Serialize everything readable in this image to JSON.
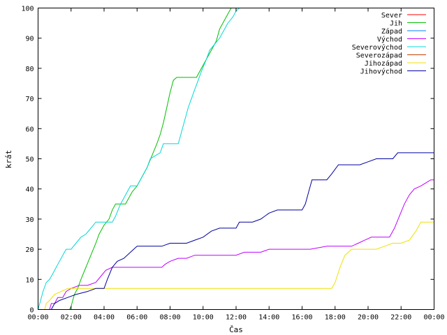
{
  "chart_data": {
    "type": "line",
    "title": "",
    "xlabel": "Čas",
    "ylabel": "krát",
    "xlim": [
      0,
      24
    ],
    "ylim": [
      0,
      100
    ],
    "grid": false,
    "legend_position": "top-right",
    "x_ticks": [
      {
        "value": 0,
        "label": "00:00"
      },
      {
        "value": 2,
        "label": "02:00"
      },
      {
        "value": 4,
        "label": "04:00"
      },
      {
        "value": 6,
        "label": "06:00"
      },
      {
        "value": 8,
        "label": "08:00"
      },
      {
        "value": 10,
        "label": "10:00"
      },
      {
        "value": 12,
        "label": "12:00"
      },
      {
        "value": 14,
        "label": "14:00"
      },
      {
        "value": 16,
        "label": "16:00"
      },
      {
        "value": 18,
        "label": "18:00"
      },
      {
        "value": 20,
        "label": "20:00"
      },
      {
        "value": 22,
        "label": "22:00"
      },
      {
        "value": 24,
        "label": "00:00"
      }
    ],
    "y_ticks": [
      {
        "value": 0,
        "label": "0"
      },
      {
        "value": 10,
        "label": "10"
      },
      {
        "value": 20,
        "label": "20"
      },
      {
        "value": 30,
        "label": "30"
      },
      {
        "value": 40,
        "label": "40"
      },
      {
        "value": 50,
        "label": "50"
      },
      {
        "value": 60,
        "label": "60"
      },
      {
        "value": 70,
        "label": "70"
      },
      {
        "value": 80,
        "label": "80"
      },
      {
        "value": 90,
        "label": "90"
      },
      {
        "value": 100,
        "label": "100"
      }
    ],
    "series": [
      {
        "name": "Sever",
        "color": "#ff0000",
        "points": []
      },
      {
        "name": "Jih",
        "color": "#00c000",
        "points": [
          [
            0.0,
            0
          ],
          [
            1.4,
            0
          ],
          [
            1.9,
            0
          ],
          [
            2.0,
            1
          ],
          [
            2.1,
            3
          ],
          [
            2.2,
            5
          ],
          [
            2.4,
            7
          ],
          [
            2.6,
            10
          ],
          [
            2.9,
            14
          ],
          [
            3.2,
            18
          ],
          [
            3.5,
            22
          ],
          [
            3.7,
            25
          ],
          [
            4.0,
            28
          ],
          [
            4.3,
            30
          ],
          [
            4.5,
            33
          ],
          [
            4.7,
            35
          ],
          [
            5.0,
            35
          ],
          [
            5.3,
            35
          ],
          [
            5.5,
            37
          ],
          [
            5.7,
            39
          ],
          [
            6.0,
            41
          ],
          [
            6.3,
            44
          ],
          [
            6.6,
            47
          ],
          [
            6.9,
            51
          ],
          [
            7.2,
            55
          ],
          [
            7.4,
            58
          ],
          [
            7.6,
            62
          ],
          [
            7.8,
            67
          ],
          [
            8.0,
            72
          ],
          [
            8.2,
            76
          ],
          [
            8.4,
            77
          ],
          [
            9.0,
            77
          ],
          [
            9.6,
            77
          ],
          [
            9.8,
            79
          ],
          [
            10.2,
            83
          ],
          [
            10.5,
            86
          ],
          [
            10.8,
            89
          ],
          [
            11.0,
            93
          ],
          [
            11.2,
            95
          ],
          [
            11.4,
            97
          ],
          [
            11.6,
            99
          ],
          [
            11.7,
            100
          ]
        ]
      },
      {
        "name": "Západ",
        "color": "#0080ff",
        "points": []
      },
      {
        "name": "Východ",
        "color": "#c000ff",
        "points": [
          [
            0.0,
            0
          ],
          [
            0.7,
            0
          ],
          [
            0.8,
            2
          ],
          [
            1.0,
            2
          ],
          [
            1.2,
            4
          ],
          [
            1.5,
            4
          ],
          [
            1.7,
            6
          ],
          [
            2.0,
            7
          ],
          [
            2.5,
            8
          ],
          [
            3.0,
            8
          ],
          [
            3.5,
            9
          ],
          [
            3.8,
            11
          ],
          [
            4.1,
            13
          ],
          [
            4.5,
            14
          ],
          [
            5.0,
            14
          ],
          [
            6.0,
            14
          ],
          [
            7.5,
            14
          ],
          [
            7.7,
            15
          ],
          [
            8.0,
            16
          ],
          [
            8.5,
            17
          ],
          [
            9.0,
            17
          ],
          [
            9.5,
            18
          ],
          [
            11.0,
            18
          ],
          [
            12.0,
            18
          ],
          [
            12.5,
            19
          ],
          [
            13.5,
            19
          ],
          [
            14.0,
            20
          ],
          [
            15.5,
            20
          ],
          [
            16.5,
            20
          ],
          [
            17.5,
            21
          ],
          [
            19.0,
            21
          ],
          [
            19.4,
            22
          ],
          [
            19.8,
            23
          ],
          [
            20.2,
            24
          ],
          [
            21.3,
            24
          ],
          [
            21.6,
            27
          ],
          [
            21.9,
            31
          ],
          [
            22.2,
            35
          ],
          [
            22.5,
            38
          ],
          [
            22.8,
            40
          ],
          [
            23.2,
            41
          ],
          [
            23.5,
            42
          ],
          [
            23.8,
            43
          ],
          [
            24.0,
            43
          ]
        ]
      },
      {
        "name": "Severovýchod",
        "color": "#00d8d8",
        "points": [
          [
            0.0,
            0
          ],
          [
            0.1,
            2
          ],
          [
            0.3,
            6
          ],
          [
            0.5,
            9
          ],
          [
            0.7,
            10
          ],
          [
            0.9,
            12
          ],
          [
            1.2,
            15
          ],
          [
            1.5,
            18
          ],
          [
            1.7,
            20
          ],
          [
            2.0,
            20
          ],
          [
            2.3,
            22
          ],
          [
            2.6,
            24
          ],
          [
            2.9,
            25
          ],
          [
            3.2,
            27
          ],
          [
            3.5,
            29
          ],
          [
            4.0,
            29
          ],
          [
            4.5,
            29
          ],
          [
            4.7,
            31
          ],
          [
            5.0,
            35
          ],
          [
            5.2,
            37
          ],
          [
            5.4,
            39
          ],
          [
            5.6,
            41
          ],
          [
            6.0,
            41
          ],
          [
            6.2,
            43
          ],
          [
            6.4,
            45
          ],
          [
            6.6,
            47
          ],
          [
            6.8,
            50
          ],
          [
            7.1,
            51
          ],
          [
            7.4,
            52
          ],
          [
            7.6,
            55
          ],
          [
            8.0,
            55
          ],
          [
            8.5,
            55
          ],
          [
            8.7,
            59
          ],
          [
            8.9,
            63
          ],
          [
            9.1,
            67
          ],
          [
            9.3,
            70
          ],
          [
            9.5,
            73
          ],
          [
            9.7,
            76
          ],
          [
            9.9,
            79
          ],
          [
            10.2,
            83
          ],
          [
            10.4,
            86
          ],
          [
            10.7,
            88
          ],
          [
            11.0,
            90
          ],
          [
            11.3,
            93
          ],
          [
            11.5,
            95
          ],
          [
            11.8,
            97
          ],
          [
            12.0,
            99
          ],
          [
            12.2,
            100
          ]
        ]
      },
      {
        "name": "Severozápad",
        "color": "#c04000",
        "points": []
      },
      {
        "name": "Jihozápad",
        "color": "#f0e000",
        "points": [
          [
            0.0,
            0
          ],
          [
            0.4,
            0
          ],
          [
            0.5,
            2
          ],
          [
            0.7,
            3
          ],
          [
            1.0,
            5
          ],
          [
            1.4,
            6
          ],
          [
            1.8,
            7
          ],
          [
            2.5,
            7
          ],
          [
            4.0,
            7
          ],
          [
            8.0,
            7
          ],
          [
            12.0,
            7
          ],
          [
            16.0,
            7
          ],
          [
            17.8,
            7
          ],
          [
            18.0,
            9
          ],
          [
            18.3,
            14
          ],
          [
            18.6,
            18
          ],
          [
            19.0,
            20
          ],
          [
            20.5,
            20
          ],
          [
            21.0,
            21
          ],
          [
            21.5,
            22
          ],
          [
            22.0,
            22
          ],
          [
            22.5,
            23
          ],
          [
            22.9,
            26
          ],
          [
            23.2,
            29
          ],
          [
            24.0,
            29
          ]
        ]
      },
      {
        "name": "Jihovýchod",
        "color": "#0000a0",
        "points": [
          [
            0.0,
            0
          ],
          [
            0.8,
            0
          ],
          [
            1.0,
            2
          ],
          [
            1.3,
            3
          ],
          [
            1.8,
            4
          ],
          [
            2.3,
            5
          ],
          [
            3.0,
            6
          ],
          [
            3.5,
            7
          ],
          [
            4.0,
            7
          ],
          [
            4.2,
            10
          ],
          [
            4.5,
            14
          ],
          [
            4.8,
            16
          ],
          [
            5.2,
            17
          ],
          [
            5.6,
            19
          ],
          [
            6.0,
            21
          ],
          [
            7.0,
            21
          ],
          [
            7.5,
            21
          ],
          [
            8.0,
            22
          ],
          [
            9.0,
            22
          ],
          [
            9.5,
            23
          ],
          [
            10.0,
            24
          ],
          [
            10.5,
            26
          ],
          [
            11.0,
            27
          ],
          [
            12.0,
            27
          ],
          [
            12.2,
            29
          ],
          [
            13.0,
            29
          ],
          [
            13.5,
            30
          ],
          [
            14.0,
            32
          ],
          [
            14.5,
            33
          ],
          [
            15.5,
            33
          ],
          [
            16.0,
            33
          ],
          [
            16.2,
            35
          ],
          [
            16.4,
            39
          ],
          [
            16.6,
            43
          ],
          [
            17.5,
            43
          ],
          [
            17.8,
            45
          ],
          [
            18.2,
            48
          ],
          [
            19.5,
            48
          ],
          [
            20.0,
            49
          ],
          [
            20.5,
            50
          ],
          [
            21.5,
            50
          ],
          [
            21.8,
            52
          ],
          [
            24.0,
            52
          ]
        ]
      }
    ]
  }
}
